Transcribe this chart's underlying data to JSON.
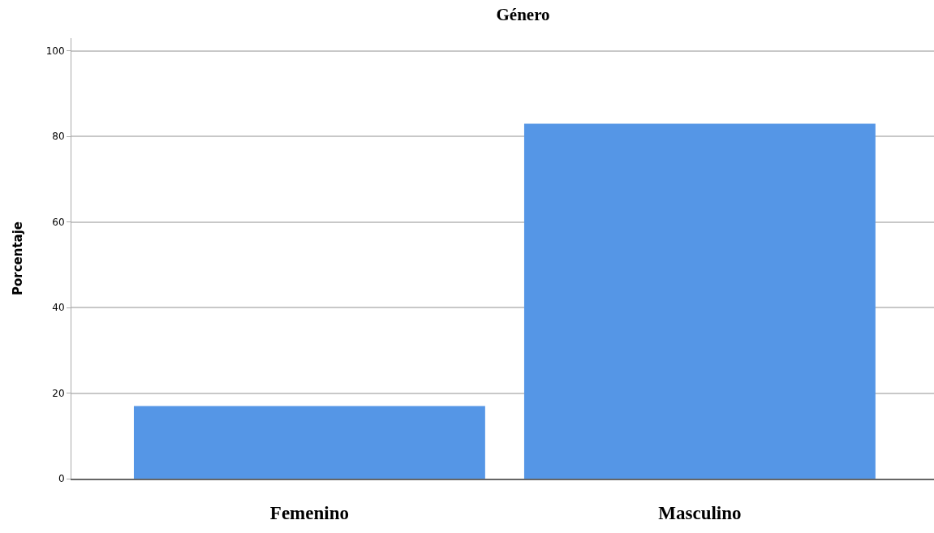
{
  "chart_data": {
    "type": "bar",
    "title": "Género",
    "ylabel": "Porcentaje",
    "categories": [
      "Femenino",
      "Masculino"
    ],
    "values": [
      17,
      83
    ],
    "color": "#5596e6",
    "ylim": [
      0,
      103
    ],
    "yticks": [
      0,
      20,
      40,
      60,
      80,
      100
    ],
    "grid": "y",
    "legend": false
  }
}
